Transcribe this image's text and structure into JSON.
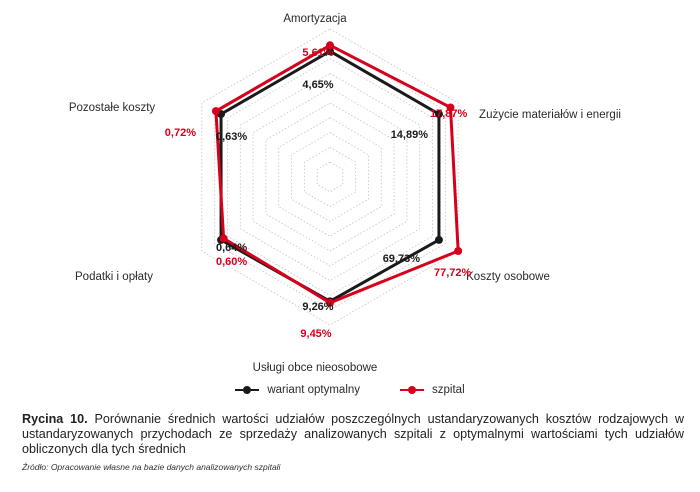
{
  "chart_data": {
    "type": "radar",
    "axes": [
      "Amortyzacja",
      "Zużycie materiałów i energii",
      "Koszty osobowe",
      "Usługi obce nieosobowe",
      "Podatki i opłaty",
      "Pozostałe koszty"
    ],
    "series": [
      {
        "name": "wariant optymalny",
        "color": "#1a1a1a",
        "labels": [
          "4,65%",
          "14,89%",
          "69,73%",
          "9,26%",
          "0,64%",
          "0,63%"
        ],
        "values": [
          4.65,
          14.89,
          69.73,
          9.26,
          0.64,
          0.63
        ],
        "radial_fraction": [
          0.85,
          0.85,
          0.85,
          0.84,
          0.85,
          0.85
        ]
      },
      {
        "name": "szpital",
        "color": "#d6001c",
        "labels": [
          "5,61%",
          "17,87%",
          "77,72%",
          "9,45%",
          "0,60%",
          "0,72%"
        ],
        "values": [
          5.61,
          17.87,
          77.72,
          9.45,
          0.6,
          0.72
        ],
        "radial_fraction": [
          0.89,
          0.94,
          1.0,
          0.85,
          0.83,
          0.89
        ]
      }
    ],
    "grid": "dotted hexagons",
    "legend_position": "bottom-center"
  },
  "caption": {
    "label": "Rycina 10.",
    "text": "Porównanie średnich wartości udziałów poszczególnych ustandaryzowanych kosztów rodzajowych w ustandaryzowanych przychodach ze sprzedaży analizowanych szpitali z optymalnymi wartościami tych udziałów obliczonych dla tych średnich"
  },
  "source": "Źródło: Opracowanie własne na bazie danych analizowanych szpitali"
}
